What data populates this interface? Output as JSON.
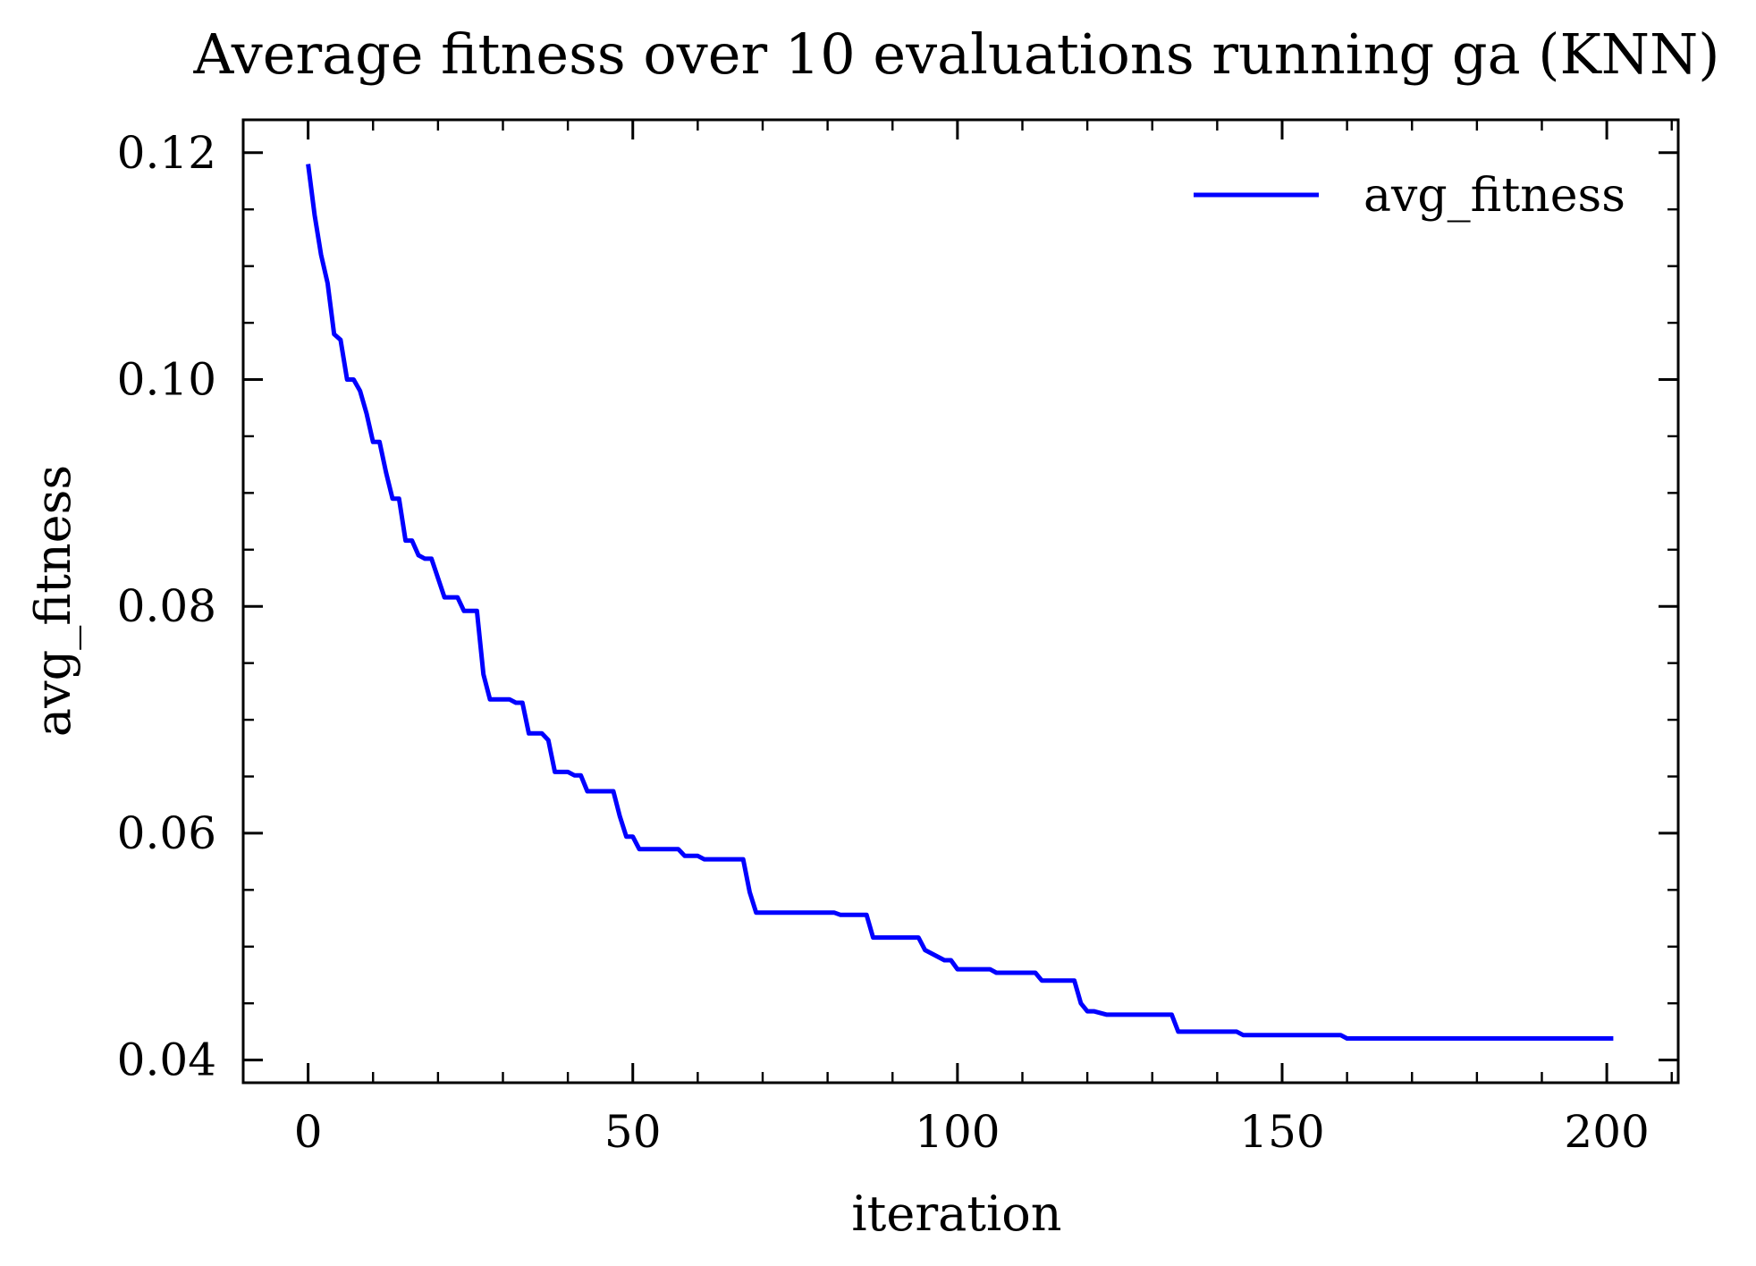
{
  "chart_data": {
    "type": "line",
    "title": "Average fitness over 10 evaluations running ga (KNN)",
    "xlabel": "iteration",
    "ylabel": "avg_fitness",
    "xlim": [
      -10,
      211
    ],
    "ylim": [
      0.038,
      0.1229
    ],
    "xticks": [
      0,
      50,
      100,
      150,
      200
    ],
    "yticks": [
      0.04,
      0.06,
      0.08,
      0.1,
      0.12
    ],
    "xtick_labels": [
      "0",
      "50",
      "100",
      "150",
      "200"
    ],
    "ytick_labels": [
      "0.04",
      "0.06",
      "0.08",
      "0.10",
      "0.12"
    ],
    "x_minor_step": 10,
    "y_minor_step": 0.005,
    "grid": false,
    "legend": {
      "position": "top-right"
    },
    "series": [
      {
        "name": "avg_fitness",
        "color": "#0000ff",
        "points": [
          [
            0,
            0.119
          ],
          [
            1,
            0.1145
          ],
          [
            2,
            0.111
          ],
          [
            3,
            0.1085
          ],
          [
            4,
            0.104
          ],
          [
            5,
            0.1035
          ],
          [
            6,
            0.1
          ],
          [
            7,
            0.1
          ],
          [
            8,
            0.099
          ],
          [
            9,
            0.097
          ],
          [
            10,
            0.0945
          ],
          [
            11,
            0.0945
          ],
          [
            12,
            0.0918
          ],
          [
            13,
            0.0895
          ],
          [
            14,
            0.0895
          ],
          [
            15,
            0.0858
          ],
          [
            16,
            0.0858
          ],
          [
            17,
            0.0845
          ],
          [
            18,
            0.0842
          ],
          [
            19,
            0.0842
          ],
          [
            21,
            0.0808
          ],
          [
            23,
            0.0808
          ],
          [
            24,
            0.0796
          ],
          [
            26,
            0.0796
          ],
          [
            27,
            0.074
          ],
          [
            28,
            0.0718
          ],
          [
            31,
            0.0718
          ],
          [
            32,
            0.0715
          ],
          [
            33,
            0.0715
          ],
          [
            34,
            0.0688
          ],
          [
            36,
            0.0688
          ],
          [
            37,
            0.0682
          ],
          [
            38,
            0.0654
          ],
          [
            40,
            0.0654
          ],
          [
            41,
            0.0651
          ],
          [
            42,
            0.0651
          ],
          [
            43,
            0.0637
          ],
          [
            47,
            0.0637
          ],
          [
            48,
            0.0615
          ],
          [
            49,
            0.0597
          ],
          [
            50,
            0.0597
          ],
          [
            51,
            0.0586
          ],
          [
            57,
            0.0586
          ],
          [
            58,
            0.058
          ],
          [
            60,
            0.058
          ],
          [
            61,
            0.0577
          ],
          [
            67,
            0.0577
          ],
          [
            68,
            0.0548
          ],
          [
            69,
            0.053
          ],
          [
            81,
            0.053
          ],
          [
            82,
            0.0528
          ],
          [
            86,
            0.0528
          ],
          [
            87,
            0.0508
          ],
          [
            94,
            0.0508
          ],
          [
            95,
            0.0497
          ],
          [
            98,
            0.0488
          ],
          [
            99,
            0.0488
          ],
          [
            100,
            0.048
          ],
          [
            105,
            0.048
          ],
          [
            106,
            0.0477
          ],
          [
            112,
            0.0477
          ],
          [
            113,
            0.047
          ],
          [
            118,
            0.047
          ],
          [
            119,
            0.045
          ],
          [
            120,
            0.0443
          ],
          [
            121,
            0.0443
          ],
          [
            123,
            0.044
          ],
          [
            133,
            0.044
          ],
          [
            134,
            0.0425
          ],
          [
            143,
            0.0425
          ],
          [
            144,
            0.0422
          ],
          [
            159,
            0.0422
          ],
          [
            160,
            0.0419
          ],
          [
            201,
            0.0419
          ]
        ]
      }
    ]
  }
}
